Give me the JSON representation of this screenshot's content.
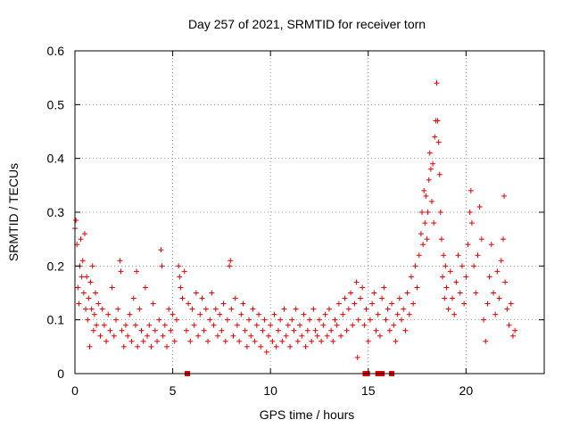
{
  "chart_data": {
    "type": "scatter",
    "title": "Day 257 of 2021, SRMTID for receiver torn",
    "xlabel": "GPS time / hours",
    "ylabel": "SRMTID / TECUs",
    "xlim": [
      0,
      24
    ],
    "ylim": [
      0,
      0.6
    ],
    "xticks": [
      0,
      5,
      10,
      15,
      20
    ],
    "xtick_labels": [
      "0",
      "5",
      "10",
      "15",
      "20"
    ],
    "yticks": [
      0,
      0.1,
      0.2,
      0.3,
      0.4,
      0.5,
      0.6
    ],
    "ytick_labels": [
      "0",
      "0.1",
      "0.2",
      "0.3",
      "0.4",
      "0.5",
      "0.6"
    ],
    "grid": true,
    "marker": "+",
    "color": "#e00000",
    "zero_markers_x": [
      5.75,
      14.85,
      14.95,
      15.5,
      15.7,
      16.2
    ],
    "series": [
      {
        "name": "SRMTID",
        "points": [
          [
            0.0,
            0.27
          ],
          [
            0.05,
            0.285
          ],
          [
            0.1,
            0.24
          ],
          [
            0.15,
            0.16
          ],
          [
            0.2,
            0.13
          ],
          [
            0.25,
            0.2
          ],
          [
            0.3,
            0.25
          ],
          [
            0.35,
            0.18
          ],
          [
            0.4,
            0.21
          ],
          [
            0.45,
            0.15
          ],
          [
            0.5,
            0.26
          ],
          [
            0.55,
            0.12
          ],
          [
            0.6,
            0.18
          ],
          [
            0.65,
            0.1
          ],
          [
            0.7,
            0.14
          ],
          [
            0.75,
            0.05
          ],
          [
            0.8,
            0.17
          ],
          [
            0.85,
            0.12
          ],
          [
            0.9,
            0.2
          ],
          [
            0.95,
            0.08
          ],
          [
            1.0,
            0.11
          ],
          [
            1.05,
            0.15
          ],
          [
            1.1,
            0.09
          ],
          [
            1.2,
            0.13
          ],
          [
            1.3,
            0.07
          ],
          [
            1.4,
            0.12
          ],
          [
            1.5,
            0.09
          ],
          [
            1.6,
            0.06
          ],
          [
            1.7,
            0.11
          ],
          [
            1.8,
            0.08
          ],
          [
            1.9,
            0.16
          ],
          [
            2.0,
            0.07
          ],
          [
            2.1,
            0.1
          ],
          [
            2.2,
            0.12
          ],
          [
            2.3,
            0.21
          ],
          [
            2.35,
            0.19
          ],
          [
            2.4,
            0.08
          ],
          [
            2.5,
            0.05
          ],
          [
            2.6,
            0.09
          ],
          [
            2.7,
            0.07
          ],
          [
            2.8,
            0.11
          ],
          [
            2.9,
            0.06
          ],
          [
            3.0,
            0.14
          ],
          [
            3.1,
            0.09
          ],
          [
            3.15,
            0.19
          ],
          [
            3.2,
            0.05
          ],
          [
            3.3,
            0.12
          ],
          [
            3.4,
            0.08
          ],
          [
            3.5,
            0.06
          ],
          [
            3.6,
            0.16
          ],
          [
            3.7,
            0.07
          ],
          [
            3.8,
            0.09
          ],
          [
            3.9,
            0.05
          ],
          [
            4.0,
            0.13
          ],
          [
            4.1,
            0.08
          ],
          [
            4.2,
            0.06
          ],
          [
            4.3,
            0.1
          ],
          [
            4.4,
            0.23
          ],
          [
            4.45,
            0.2
          ],
          [
            4.5,
            0.07
          ],
          [
            4.6,
            0.09
          ],
          [
            4.7,
            0.05
          ],
          [
            4.8,
            0.12
          ],
          [
            4.9,
            0.08
          ],
          [
            5.0,
            0.11
          ],
          [
            5.1,
            0.06
          ],
          [
            5.2,
            0.1
          ],
          [
            5.3,
            0.2
          ],
          [
            5.35,
            0.18
          ],
          [
            5.4,
            0.16
          ],
          [
            5.5,
            0.14
          ],
          [
            5.6,
            0.19
          ],
          [
            5.7,
            0.08
          ],
          [
            5.8,
            0.13
          ],
          [
            5.9,
            0.06
          ],
          [
            6.0,
            0.12
          ],
          [
            6.1,
            0.09
          ],
          [
            6.2,
            0.15
          ],
          [
            6.3,
            0.07
          ],
          [
            6.4,
            0.11
          ],
          [
            6.5,
            0.14
          ],
          [
            6.6,
            0.08
          ],
          [
            6.7,
            0.12
          ],
          [
            6.8,
            0.06
          ],
          [
            6.9,
            0.1
          ],
          [
            7.0,
            0.15
          ],
          [
            7.1,
            0.09
          ],
          [
            7.2,
            0.12
          ],
          [
            7.3,
            0.07
          ],
          [
            7.4,
            0.11
          ],
          [
            7.5,
            0.08
          ],
          [
            7.6,
            0.13
          ],
          [
            7.7,
            0.06
          ],
          [
            7.8,
            0.1
          ],
          [
            7.9,
            0.2
          ],
          [
            7.95,
            0.21
          ],
          [
            8.0,
            0.12
          ],
          [
            8.1,
            0.07
          ],
          [
            8.2,
            0.14
          ],
          [
            8.3,
            0.09
          ],
          [
            8.4,
            0.06
          ],
          [
            8.5,
            0.11
          ],
          [
            8.6,
            0.13
          ],
          [
            8.7,
            0.08
          ],
          [
            8.8,
            0.05
          ],
          [
            8.9,
            0.1
          ],
          [
            9.0,
            0.07
          ],
          [
            9.1,
            0.12
          ],
          [
            9.2,
            0.06
          ],
          [
            9.3,
            0.09
          ],
          [
            9.4,
            0.11
          ],
          [
            9.5,
            0.05
          ],
          [
            9.6,
            0.08
          ],
          [
            9.7,
            0.1
          ],
          [
            9.8,
            0.04
          ],
          [
            9.9,
            0.07
          ],
          [
            10.0,
            0.09
          ],
          [
            10.1,
            0.06
          ],
          [
            10.2,
            0.11
          ],
          [
            10.3,
            0.05
          ],
          [
            10.4,
            0.08
          ],
          [
            10.5,
            0.1
          ],
          [
            10.6,
            0.06
          ],
          [
            10.7,
            0.12
          ],
          [
            10.8,
            0.07
          ],
          [
            10.9,
            0.09
          ],
          [
            11.0,
            0.05
          ],
          [
            11.1,
            0.1
          ],
          [
            11.2,
            0.08
          ],
          [
            11.3,
            0.12
          ],
          [
            11.4,
            0.06
          ],
          [
            11.5,
            0.09
          ],
          [
            11.6,
            0.07
          ],
          [
            11.7,
            0.11
          ],
          [
            11.8,
            0.05
          ],
          [
            11.9,
            0.08
          ],
          [
            12.0,
            0.1
          ],
          [
            12.1,
            0.06
          ],
          [
            12.2,
            0.12
          ],
          [
            12.3,
            0.08
          ],
          [
            12.4,
            0.07
          ],
          [
            12.5,
            0.1
          ],
          [
            12.6,
            0.06
          ],
          [
            12.7,
            0.09
          ],
          [
            12.8,
            0.11
          ],
          [
            12.9,
            0.07
          ],
          [
            13.0,
            0.12
          ],
          [
            13.1,
            0.08
          ],
          [
            13.2,
            0.06
          ],
          [
            13.3,
            0.1
          ],
          [
            13.4,
            0.09
          ],
          [
            13.5,
            0.13
          ],
          [
            13.6,
            0.07
          ],
          [
            13.7,
            0.11
          ],
          [
            13.8,
            0.14
          ],
          [
            13.9,
            0.08
          ],
          [
            14.0,
            0.12
          ],
          [
            14.1,
            0.15
          ],
          [
            14.2,
            0.09
          ],
          [
            14.3,
            0.13
          ],
          [
            14.4,
            0.17
          ],
          [
            14.45,
            0.03
          ],
          [
            14.5,
            0.1
          ],
          [
            14.6,
            0.14
          ],
          [
            14.7,
            0.16
          ],
          [
            14.8,
            0.09
          ],
          [
            14.9,
            0.12
          ],
          [
            15.0,
            0.06
          ],
          [
            15.1,
            0.1
          ],
          [
            15.2,
            0.13
          ],
          [
            15.3,
            0.15
          ],
          [
            15.4,
            0.08
          ],
          [
            15.5,
            0.11
          ],
          [
            15.6,
            0.07
          ],
          [
            15.7,
            0.14
          ],
          [
            15.8,
            0.16
          ],
          [
            15.9,
            0.1
          ],
          [
            16.0,
            0.12
          ],
          [
            16.1,
            0.08
          ],
          [
            16.2,
            0.13
          ],
          [
            16.3,
            0.09
          ],
          [
            16.4,
            0.06
          ],
          [
            16.5,
            0.11
          ],
          [
            16.6,
            0.14
          ],
          [
            16.7,
            0.1
          ],
          [
            16.8,
            0.12
          ],
          [
            16.9,
            0.08
          ],
          [
            17.0,
            0.15
          ],
          [
            17.1,
            0.11
          ],
          [
            17.2,
            0.18
          ],
          [
            17.3,
            0.13
          ],
          [
            17.4,
            0.2
          ],
          [
            17.5,
            0.16
          ],
          [
            17.6,
            0.22
          ],
          [
            17.7,
            0.26
          ],
          [
            17.75,
            0.3
          ],
          [
            17.8,
            0.24
          ],
          [
            17.85,
            0.34
          ],
          [
            17.9,
            0.28
          ],
          [
            17.95,
            0.33
          ],
          [
            18.0,
            0.25
          ],
          [
            18.05,
            0.3
          ],
          [
            18.1,
            0.36
          ],
          [
            18.15,
            0.41
          ],
          [
            18.2,
            0.38
          ],
          [
            18.25,
            0.32
          ],
          [
            18.3,
            0.39
          ],
          [
            18.35,
            0.28
          ],
          [
            18.4,
            0.44
          ],
          [
            18.45,
            0.47
          ],
          [
            18.5,
            0.54
          ],
          [
            18.55,
            0.47
          ],
          [
            18.6,
            0.43
          ],
          [
            18.65,
            0.37
          ],
          [
            18.7,
            0.3
          ],
          [
            18.75,
            0.25
          ],
          [
            18.8,
            0.18
          ],
          [
            18.85,
            0.22
          ],
          [
            18.9,
            0.14
          ],
          [
            18.95,
            0.2
          ],
          [
            19.0,
            0.16
          ],
          [
            19.1,
            0.12
          ],
          [
            19.2,
            0.19
          ],
          [
            19.3,
            0.14
          ],
          [
            19.4,
            0.11
          ],
          [
            19.5,
            0.17
          ],
          [
            19.6,
            0.22
          ],
          [
            19.7,
            0.15
          ],
          [
            19.8,
            0.2
          ],
          [
            19.9,
            0.13
          ],
          [
            20.0,
            0.18
          ],
          [
            20.1,
            0.24
          ],
          [
            20.2,
            0.3
          ],
          [
            20.25,
            0.34
          ],
          [
            20.3,
            0.28
          ],
          [
            20.4,
            0.2
          ],
          [
            20.5,
            0.15
          ],
          [
            20.6,
            0.22
          ],
          [
            20.7,
            0.31
          ],
          [
            20.8,
            0.25
          ],
          [
            20.9,
            0.1
          ],
          [
            21.0,
            0.06
          ],
          [
            21.1,
            0.13
          ],
          [
            21.2,
            0.18
          ],
          [
            21.3,
            0.24
          ],
          [
            21.4,
            0.15
          ],
          [
            21.5,
            0.11
          ],
          [
            21.6,
            0.19
          ],
          [
            21.7,
            0.14
          ],
          [
            21.8,
            0.21
          ],
          [
            21.9,
            0.25
          ],
          [
            21.95,
            0.33
          ],
          [
            22.0,
            0.17
          ],
          [
            22.1,
            0.12
          ],
          [
            22.2,
            0.09
          ],
          [
            22.3,
            0.13
          ],
          [
            22.4,
            0.07
          ],
          [
            22.5,
            0.08
          ]
        ]
      }
    ]
  }
}
